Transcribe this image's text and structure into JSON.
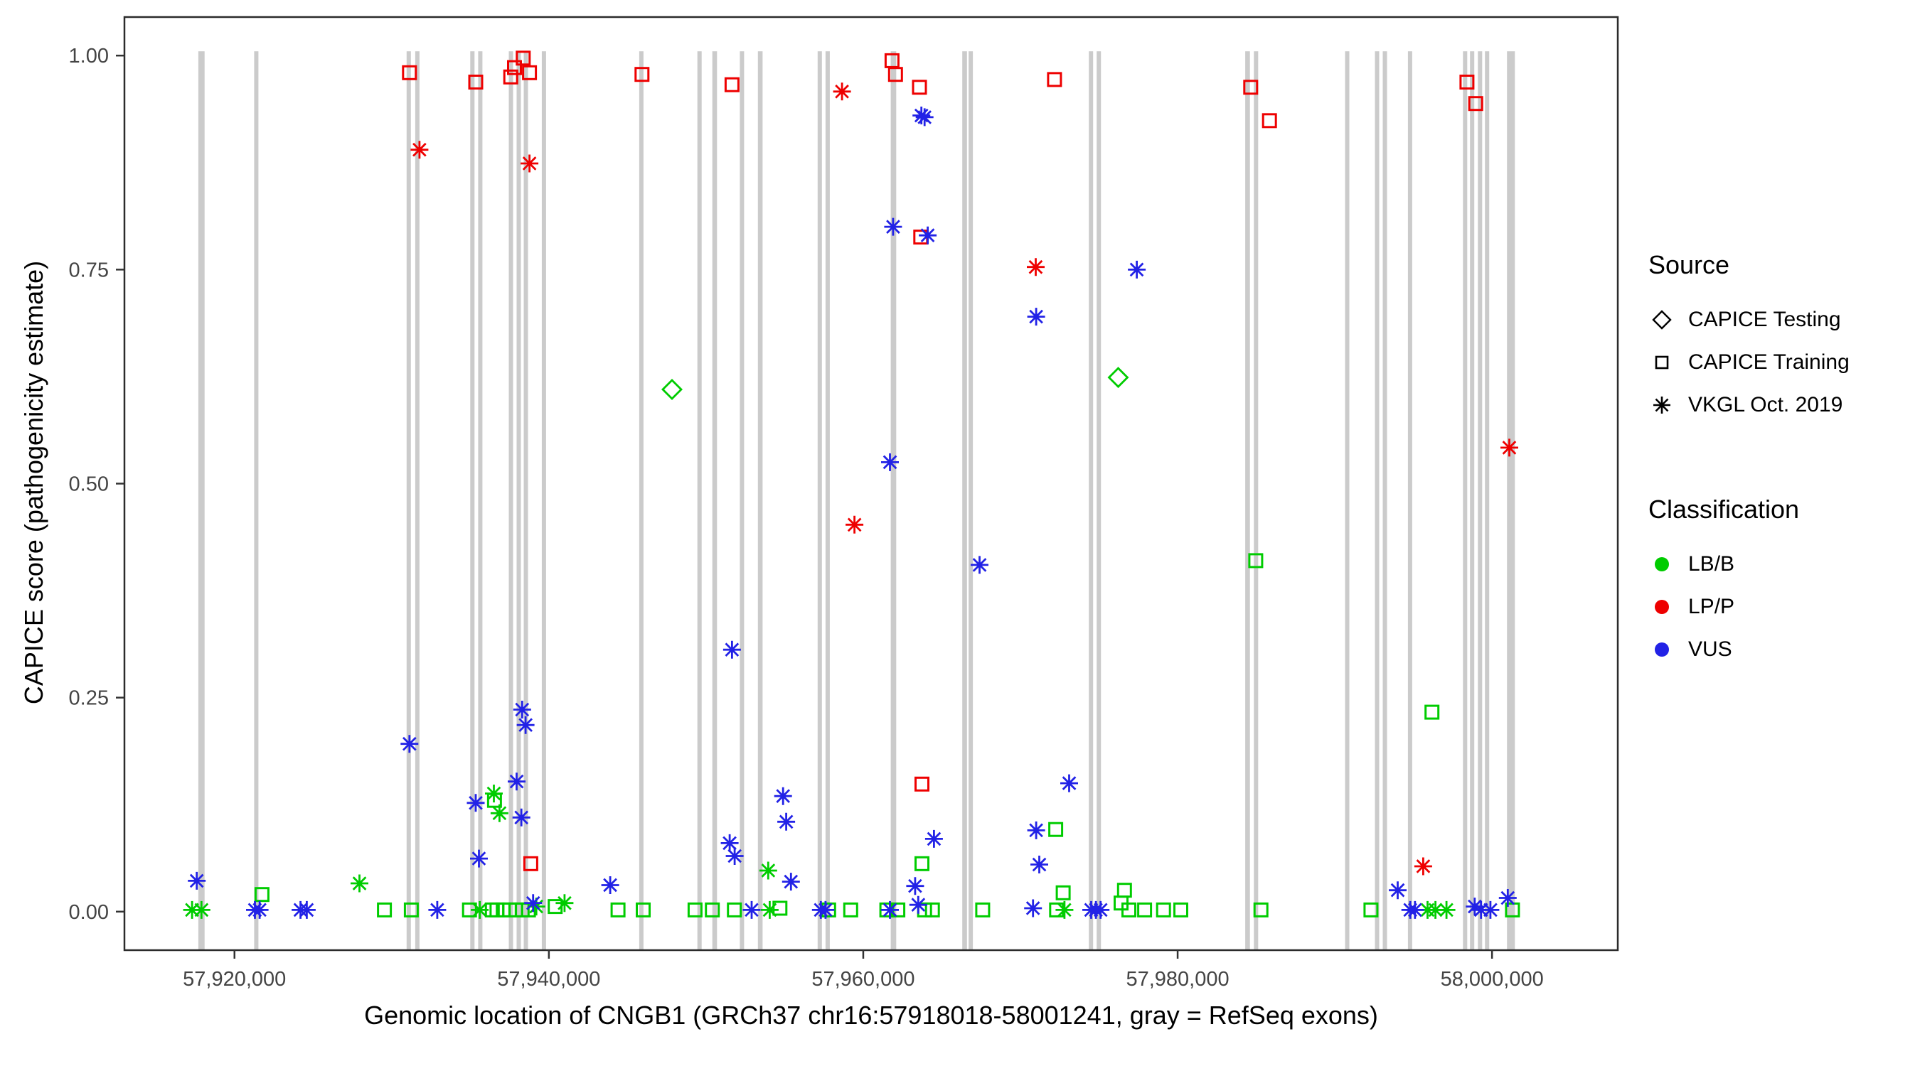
{
  "legend": {
    "source": {
      "title": "Source",
      "items": [
        {
          "label": "CAPICE Testing",
          "shape": "diamond"
        },
        {
          "label": "CAPICE Training",
          "shape": "square"
        },
        {
          "label": "VKGL Oct. 2019",
          "shape": "asterisk"
        }
      ]
    },
    "classification": {
      "title": "Classification",
      "items": [
        {
          "label": "LB/B",
          "color": "#00CC00"
        },
        {
          "label": "LP/P",
          "color": "#EE0000"
        },
        {
          "label": "VUS",
          "color": "#2222E6"
        }
      ]
    }
  },
  "chart_data": {
    "type": "scatter",
    "title": "",
    "xlabel": "Genomic location of CNGB1 (GRCh37 chr16:57918018-58001241, gray = RefSeq exons)",
    "ylabel": "CAPICE score (pathogenicity estimate)",
    "xlim": [
      57913000,
      58008000
    ],
    "ylim": [
      -0.045,
      1.045
    ],
    "x_ticks": [
      {
        "value": 57920000,
        "label": "57,920,000"
      },
      {
        "value": 57940000,
        "label": "57,940,000"
      },
      {
        "value": 57960000,
        "label": "57,960,000"
      },
      {
        "value": 57980000,
        "label": "57,980,000"
      },
      {
        "value": 58000000,
        "label": "58,000,000"
      }
    ],
    "y_ticks": [
      {
        "value": 0.0,
        "label": "0.00"
      },
      {
        "value": 0.25,
        "label": "0.25"
      },
      {
        "value": 0.5,
        "label": "0.50"
      },
      {
        "value": 0.75,
        "label": "0.75"
      },
      {
        "value": 1.0,
        "label": "1.00"
      }
    ],
    "grid": false,
    "legend_position": "right",
    "exon_color": "#CBCBCB",
    "class_colors": {
      "LB": "#00CC00",
      "LP": "#EE0000",
      "VUS": "#2222E6"
    },
    "source_shapes": {
      "testing": "diamond",
      "training": "square",
      "vkgl": "asterisk"
    },
    "exons": [
      [
        57917700,
        57918100
      ],
      [
        57921250,
        57921500
      ],
      [
        57930950,
        57931200
      ],
      [
        57931500,
        57931750
      ],
      [
        57935000,
        57935250
      ],
      [
        57935500,
        57935750
      ],
      [
        57937450,
        57937700
      ],
      [
        57937950,
        57938200
      ],
      [
        57938400,
        57938650
      ],
      [
        57939550,
        57939800
      ],
      [
        57945750,
        57946000
      ],
      [
        57949450,
        57949700
      ],
      [
        57950400,
        57950700
      ],
      [
        57952150,
        57952400
      ],
      [
        57953300,
        57953600
      ],
      [
        57957100,
        57957350
      ],
      [
        57957600,
        57957850
      ],
      [
        57961750,
        57962100
      ],
      [
        57966300,
        57966600
      ],
      [
        57966700,
        57966950
      ],
      [
        57974350,
        57974600
      ],
      [
        57974850,
        57975100
      ],
      [
        57984300,
        57984600
      ],
      [
        57984850,
        57985100
      ],
      [
        57990650,
        57990900
      ],
      [
        57992550,
        57992800
      ],
      [
        57993050,
        57993300
      ],
      [
        57994650,
        57994900
      ],
      [
        57998150,
        57998400
      ],
      [
        57998600,
        57998850
      ],
      [
        57999100,
        57999350
      ],
      [
        57999550,
        57999800
      ],
      [
        58000950,
        58001450
      ]
    ],
    "points": [
      [
        57931133,
        0.98,
        "training",
        "LP"
      ],
      [
        57935348,
        0.969,
        "training",
        "LP"
      ],
      [
        57937574,
        0.975,
        "training",
        "LP"
      ],
      [
        57937813,
        0.986,
        "training",
        "LP"
      ],
      [
        57938370,
        0.997,
        "training",
        "LP"
      ],
      [
        57938768,
        0.98,
        "training",
        "LP"
      ],
      [
        57938847,
        0.056,
        "training",
        "LP"
      ],
      [
        57945925,
        0.978,
        "training",
        "LP"
      ],
      [
        57951650,
        0.966,
        "training",
        "LP"
      ],
      [
        57961828,
        0.994,
        "training",
        "LP"
      ],
      [
        57962050,
        0.978,
        "training",
        "LP"
      ],
      [
        57963577,
        0.963,
        "training",
        "LP"
      ],
      [
        57963657,
        0.788,
        "training",
        "LP"
      ],
      [
        57963736,
        0.149,
        "training",
        "LP"
      ],
      [
        57972165,
        0.972,
        "training",
        "LP"
      ],
      [
        57984650,
        0.963,
        "training",
        "LP"
      ],
      [
        57985843,
        0.924,
        "training",
        "LP"
      ],
      [
        57998407,
        0.969,
        "training",
        "LP"
      ],
      [
        57998963,
        0.944,
        "training",
        "LP"
      ],
      [
        57931769,
        0.89,
        "vkgl",
        "LP"
      ],
      [
        57938768,
        0.874,
        "vkgl",
        "LP"
      ],
      [
        57958648,
        0.958,
        "vkgl",
        "LP"
      ],
      [
        57959443,
        0.452,
        "vkgl",
        "LP"
      ],
      [
        57970972,
        0.753,
        "vkgl",
        "LP"
      ],
      [
        57995624,
        0.053,
        "vkgl",
        "LP"
      ],
      [
        58001100,
        0.542,
        "vkgl",
        "LP"
      ],
      [
        57947834,
        0.61,
        "testing",
        "LB"
      ],
      [
        57976220,
        0.624,
        "testing",
        "LB"
      ],
      [
        57921750,
        0.02,
        "training",
        "LB"
      ],
      [
        57936541,
        0.13,
        "training",
        "LB"
      ],
      [
        57963736,
        0.056,
        "training",
        "LB"
      ],
      [
        57972244,
        0.096,
        "training",
        "LB"
      ],
      [
        57972721,
        0.022,
        "training",
        "LB"
      ],
      [
        57976618,
        0.025,
        "training",
        "LB"
      ],
      [
        57984968,
        0.41,
        "training",
        "LB"
      ],
      [
        57996181,
        0.233,
        "training",
        "LB"
      ],
      [
        57929540,
        0.002,
        "training",
        "LB"
      ],
      [
        57931250,
        0.002,
        "training",
        "LB"
      ],
      [
        57934950,
        0.002,
        "training",
        "LB"
      ],
      [
        57936400,
        0.002,
        "training",
        "LB"
      ],
      [
        57936700,
        0.002,
        "training",
        "LB"
      ],
      [
        57937100,
        0.002,
        "training",
        "LB"
      ],
      [
        57937500,
        0.002,
        "training",
        "LB"
      ],
      [
        57937900,
        0.002,
        "training",
        "LB"
      ],
      [
        57938300,
        0.002,
        "training",
        "LB"
      ],
      [
        57938700,
        0.002,
        "training",
        "LB"
      ],
      [
        57940400,
        0.006,
        "training",
        "LB"
      ],
      [
        57944400,
        0.002,
        "training",
        "LB"
      ],
      [
        57946000,
        0.002,
        "training",
        "LB"
      ],
      [
        57949300,
        0.002,
        "training",
        "LB"
      ],
      [
        57950400,
        0.002,
        "training",
        "LB"
      ],
      [
        57951800,
        0.002,
        "training",
        "LB"
      ],
      [
        57954700,
        0.004,
        "training",
        "LB"
      ],
      [
        57957800,
        0.002,
        "training",
        "LB"
      ],
      [
        57959200,
        0.002,
        "training",
        "LB"
      ],
      [
        57961500,
        0.002,
        "training",
        "LB"
      ],
      [
        57962200,
        0.002,
        "training",
        "LB"
      ],
      [
        57963900,
        0.002,
        "training",
        "LB"
      ],
      [
        57964400,
        0.002,
        "training",
        "LB"
      ],
      [
        57967600,
        0.002,
        "training",
        "LB"
      ],
      [
        57972300,
        0.002,
        "training",
        "LB"
      ],
      [
        57976400,
        0.01,
        "training",
        "LB"
      ],
      [
        57976900,
        0.002,
        "training",
        "LB"
      ],
      [
        57977900,
        0.002,
        "training",
        "LB"
      ],
      [
        57979100,
        0.002,
        "training",
        "LB"
      ],
      [
        57980200,
        0.002,
        "training",
        "LB"
      ],
      [
        57985300,
        0.002,
        "training",
        "LB"
      ],
      [
        57992300,
        0.002,
        "training",
        "LB"
      ],
      [
        58001300,
        0.002,
        "training",
        "LB"
      ],
      [
        57927952,
        0.033,
        "vkgl",
        "LB"
      ],
      [
        57936500,
        0.138,
        "vkgl",
        "LB"
      ],
      [
        57936859,
        0.115,
        "vkgl",
        "LB"
      ],
      [
        57953956,
        0.048,
        "vkgl",
        "LB"
      ],
      [
        57917300,
        0.002,
        "vkgl",
        "LB"
      ],
      [
        57917900,
        0.002,
        "vkgl",
        "LB"
      ],
      [
        57935600,
        0.002,
        "vkgl",
        "LB"
      ],
      [
        57939200,
        0.006,
        "vkgl",
        "LB"
      ],
      [
        57941000,
        0.01,
        "vkgl",
        "LB"
      ],
      [
        57954050,
        0.002,
        "vkgl",
        "LB"
      ],
      [
        57972800,
        0.002,
        "vkgl",
        "LB"
      ],
      [
        57995900,
        0.002,
        "vkgl",
        "LB"
      ],
      [
        57996400,
        0.002,
        "vkgl",
        "LB"
      ],
      [
        57997100,
        0.002,
        "vkgl",
        "LB"
      ],
      [
        57917600,
        0.036,
        "vkgl",
        "VUS"
      ],
      [
        57931133,
        0.196,
        "vkgl",
        "VUS"
      ],
      [
        57935348,
        0.127,
        "vkgl",
        "VUS"
      ],
      [
        57935550,
        0.062,
        "vkgl",
        "VUS"
      ],
      [
        57937950,
        0.152,
        "vkgl",
        "VUS"
      ],
      [
        57938250,
        0.11,
        "vkgl",
        "VUS"
      ],
      [
        57938300,
        0.236,
        "vkgl",
        "VUS"
      ],
      [
        57938520,
        0.218,
        "vkgl",
        "VUS"
      ],
      [
        57943900,
        0.031,
        "vkgl",
        "VUS"
      ],
      [
        57951500,
        0.08,
        "vkgl",
        "VUS"
      ],
      [
        57951650,
        0.306,
        "vkgl",
        "VUS"
      ],
      [
        57951820,
        0.065,
        "vkgl",
        "VUS"
      ],
      [
        57954900,
        0.135,
        "vkgl",
        "VUS"
      ],
      [
        57955100,
        0.105,
        "vkgl",
        "VUS"
      ],
      [
        57955400,
        0.035,
        "vkgl",
        "VUS"
      ],
      [
        57961700,
        0.525,
        "vkgl",
        "VUS"
      ],
      [
        57961900,
        0.8,
        "vkgl",
        "VUS"
      ],
      [
        57963700,
        0.93,
        "vkgl",
        "VUS"
      ],
      [
        57963900,
        0.928,
        "vkgl",
        "VUS"
      ],
      [
        57964100,
        0.79,
        "vkgl",
        "VUS"
      ],
      [
        57964500,
        0.085,
        "vkgl",
        "VUS"
      ],
      [
        57967400,
        0.405,
        "vkgl",
        "VUS"
      ],
      [
        57971000,
        0.695,
        "vkgl",
        "VUS"
      ],
      [
        57971000,
        0.095,
        "vkgl",
        "VUS"
      ],
      [
        57971200,
        0.055,
        "vkgl",
        "VUS"
      ],
      [
        57973100,
        0.15,
        "vkgl",
        "VUS"
      ],
      [
        57977400,
        0.75,
        "vkgl",
        "VUS"
      ],
      [
        57994000,
        0.025,
        "vkgl",
        "VUS"
      ],
      [
        58001000,
        0.016,
        "vkgl",
        "VUS"
      ],
      [
        57921300,
        0.002,
        "vkgl",
        "VUS"
      ],
      [
        57921600,
        0.002,
        "vkgl",
        "VUS"
      ],
      [
        57924200,
        0.002,
        "vkgl",
        "VUS"
      ],
      [
        57924600,
        0.002,
        "vkgl",
        "VUS"
      ],
      [
        57932900,
        0.002,
        "vkgl",
        "VUS"
      ],
      [
        57939000,
        0.01,
        "vkgl",
        "VUS"
      ],
      [
        57952900,
        0.002,
        "vkgl",
        "VUS"
      ],
      [
        57957300,
        0.002,
        "vkgl",
        "VUS"
      ],
      [
        57957600,
        0.002,
        "vkgl",
        "VUS"
      ],
      [
        57961700,
        0.002,
        "vkgl",
        "VUS"
      ],
      [
        57963300,
        0.03,
        "vkgl",
        "VUS"
      ],
      [
        57963500,
        0.008,
        "vkgl",
        "VUS"
      ],
      [
        57970800,
        0.004,
        "vkgl",
        "VUS"
      ],
      [
        57974500,
        0.002,
        "vkgl",
        "VUS"
      ],
      [
        57974800,
        0.002,
        "vkgl",
        "VUS"
      ],
      [
        57975100,
        0.002,
        "vkgl",
        "VUS"
      ],
      [
        57994800,
        0.002,
        "vkgl",
        "VUS"
      ],
      [
        57995100,
        0.002,
        "vkgl",
        "VUS"
      ],
      [
        57998900,
        0.006,
        "vkgl",
        "VUS"
      ],
      [
        57999300,
        0.002,
        "vkgl",
        "VUS"
      ],
      [
        57999900,
        0.002,
        "vkgl",
        "VUS"
      ]
    ]
  }
}
